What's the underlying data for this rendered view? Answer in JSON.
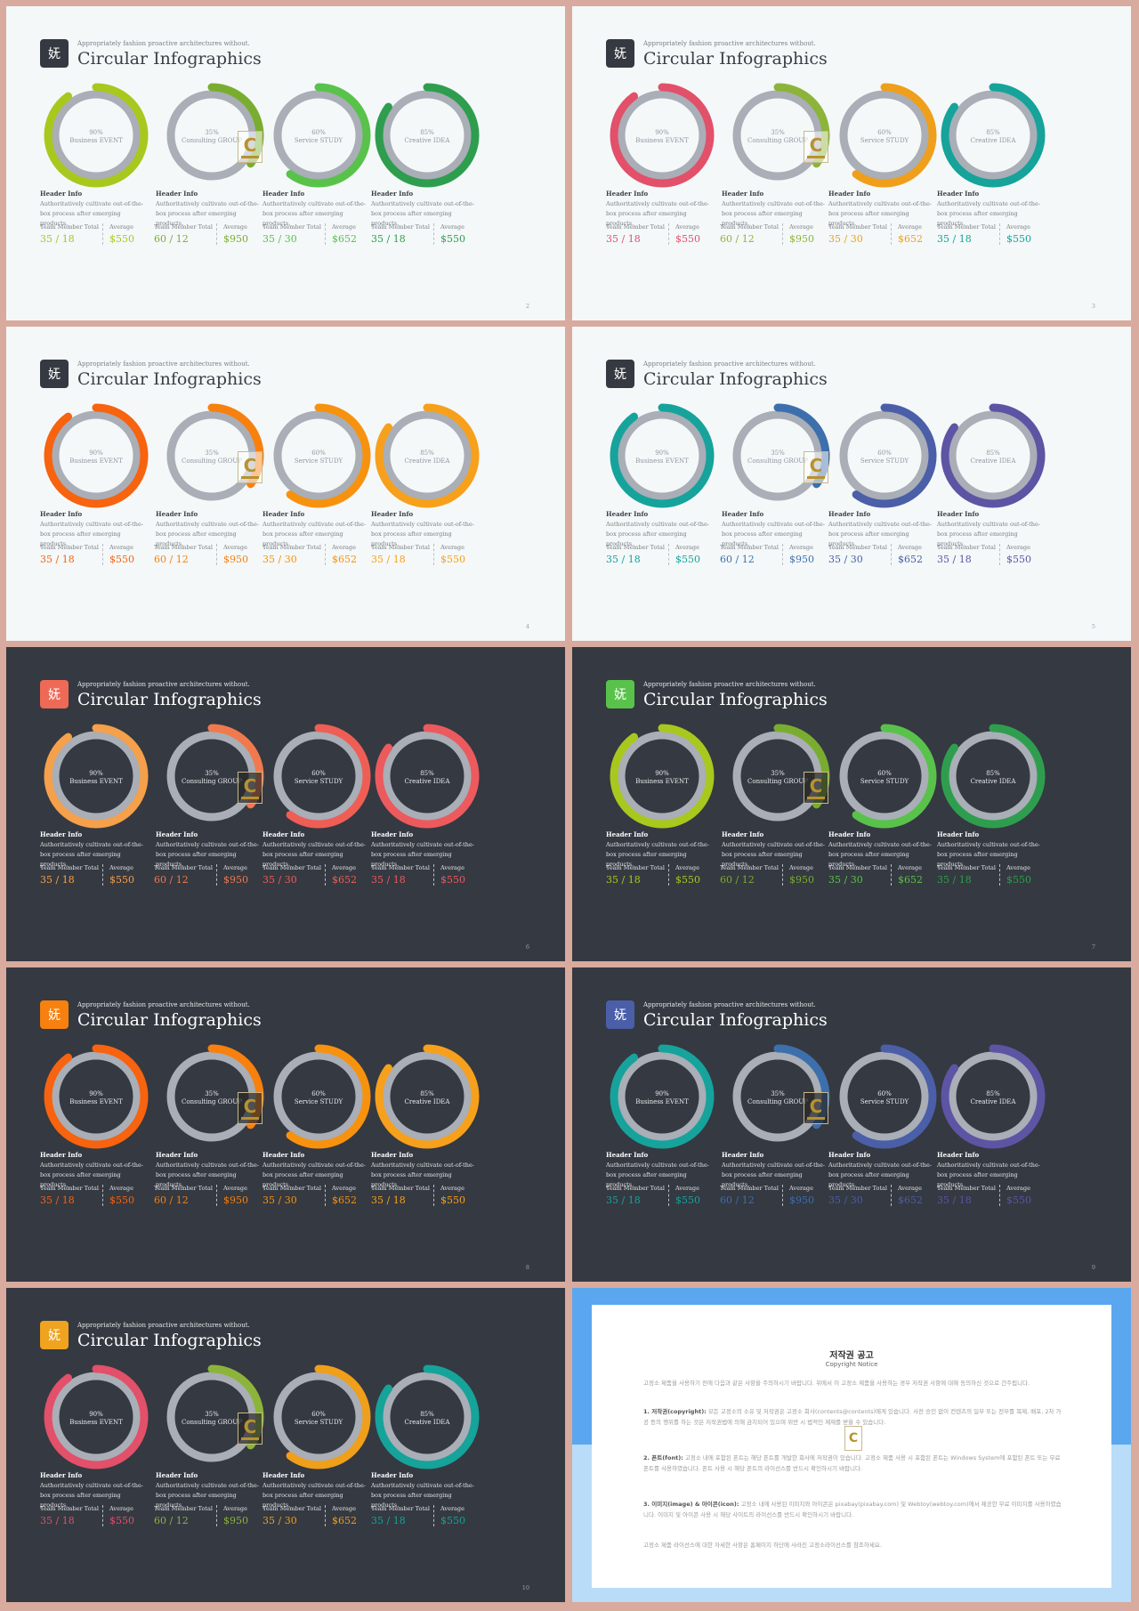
{
  "common": {
    "subtitle": "Appropriately fashion proactive architectures without.",
    "title": "Circular Infographics",
    "logo_glyph": "妩",
    "watermark_letter": "C",
    "header_info": "Header Info",
    "desc_line1": "Authoritatively cultivate out-of-the-",
    "desc_line2": "box process after emerging products.",
    "team_label": "Team Member Total",
    "avg_label": "Average",
    "ring_track_color": "#a9aeb7",
    "rings": [
      {
        "percent": "90%",
        "label": "Business EVENT",
        "value": 0.9
      },
      {
        "percent": "35%",
        "label": "Consulting GROUP",
        "value": 0.35
      },
      {
        "percent": "60%",
        "label": "Service STUDY",
        "value": 0.6
      },
      {
        "percent": "85%",
        "label": "Creative IDEA",
        "value": 0.85
      }
    ],
    "stats": [
      {
        "team": "35 / 18",
        "avg": "$550"
      },
      {
        "team": "60 / 12",
        "avg": "$950"
      },
      {
        "team": "35 / 30",
        "avg": "$652"
      },
      {
        "team": "35 / 18",
        "avg": "$550"
      }
    ]
  },
  "slides": [
    {
      "theme": "light",
      "page": "2",
      "logo_color": "#353941",
      "colors": [
        "#a8c81e",
        "#7aad2f",
        "#59c24a",
        "#2e9e4e"
      ]
    },
    {
      "theme": "light",
      "page": "3",
      "logo_color": "#353941",
      "colors": [
        "#e2506a",
        "#8db43a",
        "#ef9f1a",
        "#15a39a"
      ]
    },
    {
      "theme": "light",
      "page": "4",
      "logo_color": "#353941",
      "colors": [
        "#f7630f",
        "#f7800f",
        "#f7920f",
        "#f7a01c"
      ]
    },
    {
      "theme": "light",
      "page": "5",
      "logo_color": "#353941",
      "colors": [
        "#16a39c",
        "#3d6fac",
        "#4b5ea8",
        "#5d54a4"
      ]
    },
    {
      "theme": "dark",
      "page": "6",
      "logo_color": "#ee6a56",
      "colors": [
        "#f5a04a",
        "#f07a4e",
        "#ee5e55",
        "#ec5a5e"
      ]
    },
    {
      "theme": "dark",
      "page": "7",
      "logo_color": "#59c24a",
      "colors": [
        "#a8c81e",
        "#7aad2f",
        "#59c24a",
        "#2e9e4e"
      ]
    },
    {
      "theme": "dark",
      "page": "8",
      "logo_color": "#f7800f",
      "colors": [
        "#f7630f",
        "#f7800f",
        "#f7920f",
        "#f7a01c"
      ]
    },
    {
      "theme": "dark",
      "page": "9",
      "logo_color": "#4b5ea8",
      "colors": [
        "#16a39c",
        "#3d6fac",
        "#4b5ea8",
        "#5d54a4"
      ]
    },
    {
      "theme": "dark",
      "page": "10",
      "logo_color": "#efa31e",
      "colors": [
        "#e2506a",
        "#8db43a",
        "#ef9f1a",
        "#15a39a"
      ]
    }
  ],
  "notice": {
    "title": "저작권 공고",
    "subtitle": "Copyright Notice",
    "intro": "고정소 제품을 사용하기 전에 다음과 같은 사항을 주의하시기 바랍니다. 위에서 이 고정소 제품을 사용하는 경우 저작권 사항에 대해 동의하신 것으로 간주됩니다.",
    "p1_head": "1. 저작권(copyright):",
    "p1_body": " 모든 고정소의 소유 및 저작권은 고정소 회사(contents@contents)에게 있습니다. 사전 승인 없이 컨텐츠의 일부 또는 전부를 복제, 배포, 2차 가공 등의 행위를 하는 것은 저작권법에 의해 금지되어 있으며 위반 시 법적인 제재를 받을 수 있습니다.",
    "p2_head": "2. 폰트(font):",
    "p2_body": " 고정소 내에 포함된 폰트는 해당 폰트를 개발한 회사에 저작권이 있습니다. 고정소 제품 사용 시 포함된 폰트는 Windows System에 포함된 폰트 또는 무료 폰트를 사용하였습니다. 폰트 사용 시 해당 폰트의 라이선스를 반드시 확인하시기 바랍니다.",
    "p3_head": "3. 이미지(image) & 아이콘(icon):",
    "p3_body": " 고정소 내에 사용된 이미지와 아이콘은 pixabay(pixabay.com) 및 Webtoy(webtoy.com)에서 제공한 무료 이미지를 사용하였습니다. 이미지 및 아이콘 사용 시 해당 사이트의 라이선스를 반드시 확인하시기 바랍니다.",
    "closing": "고정소 제품 라이선스에 대한 자세한 사항은 홈페이지 하단에 사라진 고정소라이선스를 참조하세요."
  }
}
